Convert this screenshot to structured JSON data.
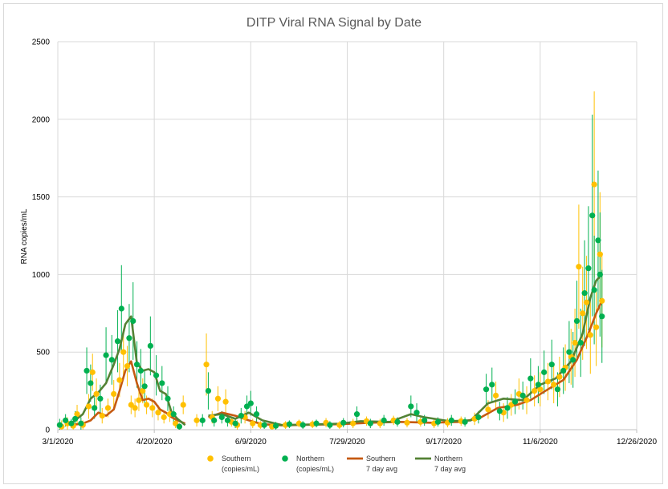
{
  "chart_data": {
    "type": "scatter",
    "title": "DITP Viral RNA Signal by Date",
    "xlabel": "",
    "ylabel": "RNA copies/mL",
    "ylim": [
      0,
      2500
    ],
    "y_ticks": [
      "0",
      "500",
      "1000",
      "1500",
      "2000",
      "2500"
    ],
    "x_ticks": [
      "3/1/2020",
      "4/20/2020",
      "6/9/2020",
      "7/29/2020",
      "9/17/2020",
      "11/6/2020",
      "12/26/2020"
    ],
    "xlim": [
      "2020-03-01",
      "2020-12-26"
    ],
    "grid": true,
    "legend_position": "bottom",
    "colors": {
      "southern": "#FFC000",
      "northern": "#00B050",
      "southern_avg": "#C55A11",
      "northern_avg": "#548235",
      "error_south": "#E6B800",
      "error_north": "#2E9E4A",
      "grid": "#d9d9d9"
    },
    "legend": [
      {
        "key": "southern",
        "marker": "dot",
        "line1": "Southern",
        "line2": "(copies/mL)"
      },
      {
        "key": "northern",
        "marker": "dot",
        "line1": "Northern",
        "line2": "(copies/mL)"
      },
      {
        "key": "southern_avg",
        "marker": "line",
        "line1": "Southern",
        "line2": "7 day avg"
      },
      {
        "key": "northern_avg",
        "marker": "line",
        "line1": "Northern",
        "line2": "7 day avg"
      }
    ],
    "series": [
      {
        "name": "Southern (copies/mL)",
        "style": "points",
        "color": "#FFC000",
        "points": [
          [
            "2020-03-03",
            20,
            40
          ],
          [
            "2020-03-06",
            40,
            40
          ],
          [
            "2020-03-09",
            25,
            30
          ],
          [
            "2020-03-11",
            100,
            60
          ],
          [
            "2020-03-14",
            30,
            30
          ],
          [
            "2020-03-17",
            150,
            80
          ],
          [
            "2020-03-19",
            370,
            120
          ],
          [
            "2020-03-21",
            230,
            100
          ],
          [
            "2020-03-24",
            90,
            50
          ],
          [
            "2020-03-27",
            140,
            60
          ],
          [
            "2020-03-30",
            230,
            90
          ],
          [
            "2020-04-02",
            320,
            110
          ],
          [
            "2020-04-04",
            500,
            150
          ],
          [
            "2020-04-06",
            410,
            130
          ],
          [
            "2020-04-08",
            160,
            60
          ],
          [
            "2020-04-10",
            140,
            60
          ],
          [
            "2020-04-12",
            190,
            70
          ],
          [
            "2020-04-14",
            250,
            80
          ],
          [
            "2020-04-16",
            160,
            60
          ],
          [
            "2020-04-19",
            140,
            60
          ],
          [
            "2020-04-22",
            110,
            50
          ],
          [
            "2020-04-25",
            80,
            40
          ],
          [
            "2020-04-28",
            100,
            50
          ],
          [
            "2020-05-01",
            40,
            30
          ],
          [
            "2020-05-05",
            160,
            60
          ],
          [
            "2020-05-12",
            60,
            40
          ],
          [
            "2020-05-17",
            420,
            200
          ],
          [
            "2020-05-20",
            80,
            40
          ],
          [
            "2020-05-23",
            200,
            80
          ],
          [
            "2020-05-27",
            180,
            80
          ],
          [
            "2020-05-30",
            50,
            30
          ],
          [
            "2020-06-02",
            30,
            30
          ],
          [
            "2020-06-06",
            80,
            40
          ],
          [
            "2020-06-10",
            40,
            30
          ],
          [
            "2020-06-14",
            30,
            25
          ],
          [
            "2020-06-20",
            20,
            20
          ],
          [
            "2020-06-27",
            30,
            25
          ],
          [
            "2020-07-04",
            40,
            25
          ],
          [
            "2020-07-11",
            35,
            25
          ],
          [
            "2020-07-18",
            45,
            30
          ],
          [
            "2020-07-25",
            30,
            25
          ],
          [
            "2020-08-01",
            40,
            30
          ],
          [
            "2020-08-08",
            55,
            30
          ],
          [
            "2020-08-15",
            40,
            30
          ],
          [
            "2020-08-22",
            60,
            30
          ],
          [
            "2020-08-29",
            45,
            30
          ],
          [
            "2020-09-05",
            50,
            30
          ],
          [
            "2020-09-12",
            40,
            30
          ],
          [
            "2020-09-19",
            45,
            30
          ],
          [
            "2020-09-26",
            55,
            30
          ],
          [
            "2020-10-03",
            70,
            40
          ],
          [
            "2020-10-10",
            130,
            60
          ],
          [
            "2020-10-14",
            220,
            90
          ],
          [
            "2020-10-18",
            110,
            60
          ],
          [
            "2020-10-22",
            160,
            70
          ],
          [
            "2020-10-26",
            230,
            100
          ],
          [
            "2020-10-30",
            190,
            90
          ],
          [
            "2020-11-03",
            250,
            100
          ],
          [
            "2020-11-06",
            260,
            110
          ],
          [
            "2020-11-10",
            310,
            120
          ],
          [
            "2020-11-13",
            290,
            120
          ],
          [
            "2020-11-16",
            340,
            130
          ],
          [
            "2020-11-19",
            400,
            150
          ],
          [
            "2020-11-22",
            470,
            180
          ],
          [
            "2020-11-24",
            560,
            220
          ],
          [
            "2020-11-26",
            1050,
            400
          ],
          [
            "2020-11-28",
            750,
            300
          ],
          [
            "2020-11-30",
            820,
            300
          ],
          [
            "2020-12-02",
            610,
            250
          ],
          [
            "2020-12-04",
            1580,
            600
          ],
          [
            "2020-12-05",
            660,
            250
          ],
          [
            "2020-12-07",
            1130,
            400
          ],
          [
            "2020-12-08",
            830,
            300
          ]
        ]
      },
      {
        "name": "Northern (copies/mL)",
        "style": "points",
        "color": "#00B050",
        "points": [
          [
            "2020-03-02",
            30,
            40
          ],
          [
            "2020-03-05",
            60,
            40
          ],
          [
            "2020-03-08",
            40,
            30
          ],
          [
            "2020-03-10",
            70,
            50
          ],
          [
            "2020-03-13",
            40,
            40
          ],
          [
            "2020-03-16",
            380,
            150
          ],
          [
            "2020-03-18",
            300,
            120
          ],
          [
            "2020-03-20",
            140,
            70
          ],
          [
            "2020-03-23",
            200,
            90
          ],
          [
            "2020-03-26",
            480,
            180
          ],
          [
            "2020-03-29",
            450,
            160
          ],
          [
            "2020-04-01",
            570,
            200
          ],
          [
            "2020-04-03",
            780,
            280
          ],
          [
            "2020-04-07",
            590,
            220
          ],
          [
            "2020-04-09",
            700,
            250
          ],
          [
            "2020-04-11",
            420,
            150
          ],
          [
            "2020-04-13",
            380,
            140
          ],
          [
            "2020-04-15",
            280,
            110
          ],
          [
            "2020-04-18",
            540,
            190
          ],
          [
            "2020-04-21",
            350,
            130
          ],
          [
            "2020-04-24",
            300,
            110
          ],
          [
            "2020-04-27",
            200,
            80
          ],
          [
            "2020-04-30",
            100,
            50
          ],
          [
            "2020-05-03",
            20,
            20
          ],
          [
            "2020-05-15",
            60,
            40
          ],
          [
            "2020-05-18",
            250,
            120
          ],
          [
            "2020-05-21",
            60,
            40
          ],
          [
            "2020-05-25",
            80,
            40
          ],
          [
            "2020-05-28",
            60,
            40
          ],
          [
            "2020-06-01",
            40,
            30
          ],
          [
            "2020-06-04",
            90,
            50
          ],
          [
            "2020-06-07",
            150,
            70
          ],
          [
            "2020-06-09",
            170,
            80
          ],
          [
            "2020-06-12",
            100,
            50
          ],
          [
            "2020-06-16",
            30,
            25
          ],
          [
            "2020-06-22",
            25,
            25
          ],
          [
            "2020-06-29",
            35,
            25
          ],
          [
            "2020-07-06",
            30,
            25
          ],
          [
            "2020-07-13",
            40,
            25
          ],
          [
            "2020-07-20",
            30,
            25
          ],
          [
            "2020-07-27",
            45,
            30
          ],
          [
            "2020-08-03",
            100,
            50
          ],
          [
            "2020-08-10",
            40,
            30
          ],
          [
            "2020-08-17",
            60,
            35
          ],
          [
            "2020-08-24",
            50,
            30
          ],
          [
            "2020-08-31",
            150,
            70
          ],
          [
            "2020-09-03",
            110,
            60
          ],
          [
            "2020-09-07",
            60,
            35
          ],
          [
            "2020-09-14",
            50,
            30
          ],
          [
            "2020-09-21",
            60,
            35
          ],
          [
            "2020-09-28",
            50,
            30
          ],
          [
            "2020-10-05",
            80,
            40
          ],
          [
            "2020-10-09",
            260,
            100
          ],
          [
            "2020-10-12",
            290,
            110
          ],
          [
            "2020-10-16",
            120,
            60
          ],
          [
            "2020-10-20",
            140,
            70
          ],
          [
            "2020-10-24",
            180,
            80
          ],
          [
            "2020-10-28",
            220,
            90
          ],
          [
            "2020-11-01",
            330,
            130
          ],
          [
            "2020-11-05",
            290,
            120
          ],
          [
            "2020-11-08",
            370,
            140
          ],
          [
            "2020-11-12",
            420,
            160
          ],
          [
            "2020-11-15",
            260,
            110
          ],
          [
            "2020-11-18",
            380,
            150
          ],
          [
            "2020-11-21",
            500,
            200
          ],
          [
            "2020-11-23",
            450,
            180
          ],
          [
            "2020-11-25",
            700,
            260
          ],
          [
            "2020-11-27",
            560,
            220
          ],
          [
            "2020-11-29",
            880,
            340
          ],
          [
            "2020-12-01",
            1040,
            400
          ],
          [
            "2020-12-03",
            1380,
            650
          ],
          [
            "2020-12-04",
            900,
            350
          ],
          [
            "2020-12-06",
            1220,
            450
          ],
          [
            "2020-12-07",
            1000,
            400
          ],
          [
            "2020-12-08",
            730,
            300
          ]
        ]
      },
      {
        "name": "Southern 7 day avg",
        "style": "line",
        "color": "#C55A11",
        "points": [
          [
            "2020-03-08",
            30
          ],
          [
            "2020-03-14",
            40
          ],
          [
            "2020-03-18",
            60
          ],
          [
            "2020-03-22",
            110
          ],
          [
            "2020-03-26",
            90
          ],
          [
            "2020-03-30",
            130
          ],
          [
            "2020-04-02",
            250
          ],
          [
            "2020-04-05",
            380
          ],
          [
            "2020-04-08",
            440
          ],
          [
            "2020-04-11",
            300
          ],
          [
            "2020-04-14",
            190
          ],
          [
            "2020-04-17",
            200
          ],
          [
            "2020-04-20",
            180
          ],
          [
            "2020-04-23",
            130
          ],
          [
            "2020-04-26",
            110
          ],
          [
            "2020-04-29",
            80
          ],
          [
            "2020-05-02",
            60
          ],
          [
            "2020-05-06",
            40
          ],
          null,
          [
            "2020-05-18",
            80
          ],
          [
            "2020-05-25",
            110
          ],
          [
            "2020-06-01",
            90
          ],
          [
            "2020-06-08",
            60
          ],
          [
            "2020-06-15",
            35
          ],
          [
            "2020-06-25",
            28
          ],
          [
            "2020-07-10",
            32
          ],
          [
            "2020-07-25",
            35
          ],
          [
            "2020-08-10",
            45
          ],
          [
            "2020-08-25",
            50
          ],
          [
            "2020-09-10",
            45
          ],
          [
            "2020-09-25",
            50
          ],
          [
            "2020-10-05",
            70
          ],
          [
            "2020-10-15",
            140
          ],
          [
            "2020-10-25",
            160
          ],
          [
            "2020-11-01",
            190
          ],
          [
            "2020-11-10",
            260
          ],
          [
            "2020-11-18",
            320
          ],
          [
            "2020-11-25",
            450
          ],
          [
            "2020-12-01",
            620
          ],
          [
            "2020-12-05",
            750
          ],
          [
            "2020-12-08",
            830
          ]
        ]
      },
      {
        "name": "Northern 7 day avg",
        "style": "line",
        "color": "#548235",
        "points": [
          [
            "2020-03-08",
            40
          ],
          [
            "2020-03-14",
            100
          ],
          [
            "2020-03-18",
            200
          ],
          [
            "2020-03-22",
            240
          ],
          [
            "2020-03-26",
            300
          ],
          [
            "2020-03-30",
            420
          ],
          [
            "2020-04-02",
            520
          ],
          [
            "2020-04-05",
            680
          ],
          [
            "2020-04-08",
            730
          ],
          [
            "2020-04-11",
            430
          ],
          [
            "2020-04-14",
            380
          ],
          [
            "2020-04-17",
            390
          ],
          [
            "2020-04-20",
            370
          ],
          [
            "2020-04-23",
            250
          ],
          [
            "2020-04-26",
            230
          ],
          [
            "2020-04-29",
            110
          ],
          [
            "2020-05-02",
            70
          ],
          [
            "2020-05-06",
            30
          ],
          null,
          [
            "2020-05-18",
            90
          ],
          [
            "2020-05-25",
            100
          ],
          [
            "2020-06-01",
            70
          ],
          [
            "2020-06-08",
            110
          ],
          [
            "2020-06-15",
            60
          ],
          [
            "2020-06-25",
            30
          ],
          [
            "2020-07-10",
            33
          ],
          [
            "2020-07-25",
            38
          ],
          [
            "2020-08-05",
            55
          ],
          [
            "2020-08-20",
            50
          ],
          [
            "2020-08-31",
            100
          ],
          [
            "2020-09-07",
            80
          ],
          [
            "2020-09-20",
            55
          ],
          [
            "2020-10-01",
            60
          ],
          [
            "2020-10-10",
            170
          ],
          [
            "2020-10-18",
            200
          ],
          [
            "2020-10-28",
            190
          ],
          [
            "2020-11-06",
            290
          ],
          [
            "2020-11-14",
            330
          ],
          [
            "2020-11-22",
            440
          ],
          [
            "2020-11-28",
            620
          ],
          [
            "2020-12-02",
            850
          ],
          [
            "2020-12-05",
            960
          ],
          [
            "2020-12-08",
            1000
          ]
        ]
      }
    ]
  }
}
